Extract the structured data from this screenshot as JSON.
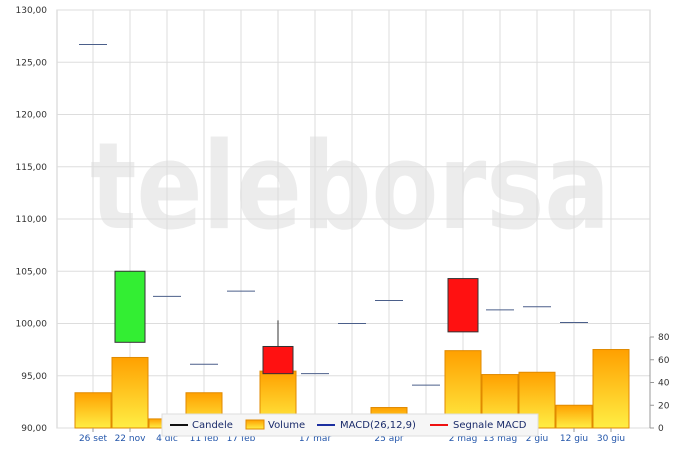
{
  "watermark": "teleborsa",
  "legend": {
    "candles": "Candele",
    "volume": "Volume",
    "macd": "MACD(26,12,9)",
    "signal": "Segnale MACD"
  },
  "colors": {
    "up": "#33ee33",
    "down": "#ff1111",
    "volume_top": "#ffa000",
    "volume_bottom": "#ffee44",
    "flat": "#4b5f8a",
    "grid": "#dddddd",
    "legend_macd": "#1c2fa0",
    "legend_signal": "#ee1111",
    "legend_candles": "#111111"
  },
  "chart_data": {
    "type": "bar",
    "y_price_axis": {
      "ticks": [
        "90,00",
        "95,00",
        "100,00",
        "105,00",
        "110,00",
        "115,00",
        "120,00",
        "125,00",
        "130,00"
      ],
      "ylim": [
        90,
        130
      ]
    },
    "y_volume_axis": {
      "ticks": [
        "0",
        "20",
        "40",
        "60",
        "80"
      ],
      "ylim": [
        0,
        80
      ]
    },
    "categories": [
      "26 set",
      "22 nov",
      "4 dic",
      "11 feb",
      "17 feb",
      "17 mar",
      "25 apr",
      "2 mag",
      "13 mag",
      "2 giu",
      "12 giu",
      "30 giu"
    ],
    "candles": [
      {
        "x": 0,
        "open": 126.7,
        "close": 126.7,
        "high": 126.7,
        "low": 126.7,
        "type": "flat"
      },
      {
        "x": 1,
        "open": 98.2,
        "close": 105.0,
        "high": 105.0,
        "low": 98.2,
        "type": "up"
      },
      {
        "x": 2,
        "open": 102.6,
        "close": 102.6,
        "high": 102.6,
        "low": 102.6,
        "type": "flat"
      },
      {
        "x": 3,
        "open": 96.1,
        "close": 96.1,
        "high": 96.1,
        "low": 96.1,
        "type": "flat"
      },
      {
        "x": 4,
        "open": 103.1,
        "close": 103.1,
        "high": 103.1,
        "low": 103.1,
        "type": "flat"
      },
      {
        "x": 5,
        "open": 97.8,
        "close": 95.2,
        "high": 100.3,
        "low": 95.2,
        "type": "down"
      },
      {
        "x": 6,
        "open": 95.2,
        "close": 95.2,
        "high": 95.2,
        "low": 95.2,
        "type": "flat"
      },
      {
        "x": 7,
        "open": 100.0,
        "close": 100.0,
        "high": 100.0,
        "low": 100.0,
        "type": "flat"
      },
      {
        "x": 8,
        "open": 102.2,
        "close": 102.2,
        "high": 102.2,
        "low": 102.2,
        "type": "flat"
      },
      {
        "x": 9,
        "open": 94.1,
        "close": 94.1,
        "high": 94.1,
        "low": 94.1,
        "type": "flat"
      },
      {
        "x": 10,
        "open": 104.3,
        "close": 99.2,
        "high": 104.3,
        "low": 99.2,
        "type": "down"
      },
      {
        "x": 11,
        "open": 101.3,
        "close": 101.3,
        "high": 101.3,
        "low": 101.3,
        "type": "flat"
      },
      {
        "x": 12,
        "open": 101.6,
        "close": 101.6,
        "high": 101.6,
        "low": 101.6,
        "type": "flat"
      },
      {
        "x": 13,
        "open": 100.1,
        "close": 100.1,
        "high": 100.1,
        "low": 100.1,
        "type": "flat"
      }
    ],
    "volume": [
      {
        "x": 0,
        "value": 31
      },
      {
        "x": 1,
        "value": 62
      },
      {
        "x": 2,
        "value": 8
      },
      {
        "x": 3,
        "value": 31
      },
      {
        "x": 5,
        "value": 50
      },
      {
        "x": 8,
        "value": 18
      },
      {
        "x": 10,
        "value": 68
      },
      {
        "x": 11,
        "value": 47
      },
      {
        "x": 12,
        "value": 49
      },
      {
        "x": 13,
        "value": 20
      },
      {
        "x": 14,
        "value": 69
      }
    ],
    "x_tick_labels": [
      {
        "slot": 0,
        "label": "26 set"
      },
      {
        "slot": 1,
        "label": "22 nov"
      },
      {
        "slot": 2,
        "label": "4 dic"
      },
      {
        "slot": 3,
        "label": "11 feb"
      },
      {
        "slot": 4,
        "label": "17 feb"
      },
      {
        "slot": 6,
        "label": "17 mar"
      },
      {
        "slot": 8,
        "label": "25 apr"
      },
      {
        "slot": 10,
        "label": "2 mag"
      },
      {
        "slot": 11,
        "label": "13 mag"
      },
      {
        "slot": 12,
        "label": "2 giu"
      },
      {
        "slot": 13,
        "label": "12 giu"
      },
      {
        "slot": 14,
        "label": "30 giu"
      }
    ],
    "grid": true,
    "legend_position": "bottom"
  }
}
